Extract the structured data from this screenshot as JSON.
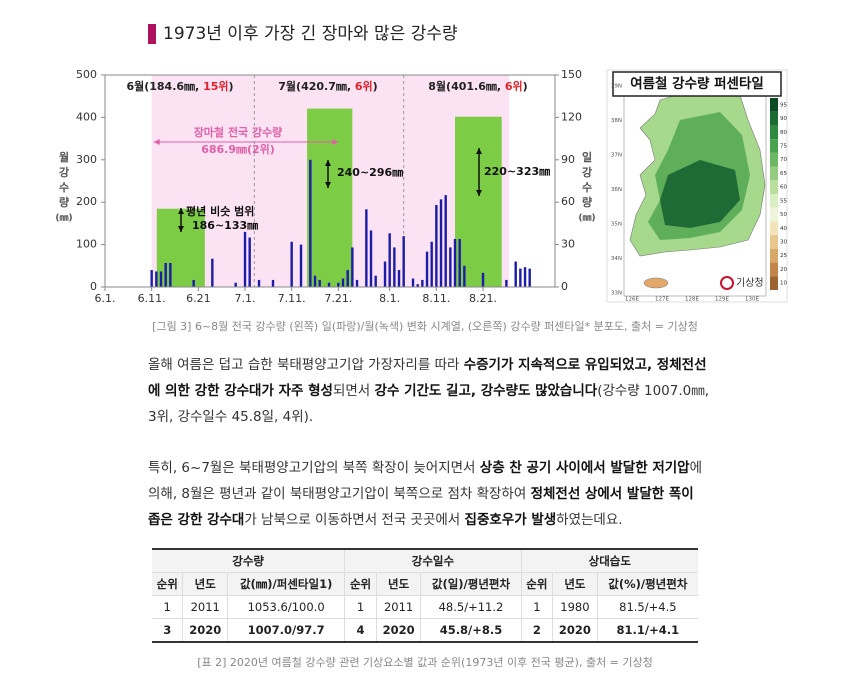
{
  "header": {
    "title": "1973년 이후 가장 긴 장마와 많은 강수량"
  },
  "chart_data": {
    "type": "bar",
    "categories": [
      "6.1.",
      null,
      null,
      null,
      null,
      null,
      null,
      null,
      null,
      null,
      "6.11.",
      null,
      null,
      null,
      null,
      null,
      null,
      null,
      null,
      null,
      "6.21",
      null,
      null,
      null,
      null,
      null,
      null,
      null,
      null,
      null,
      "7.1.",
      null,
      null,
      null,
      null,
      null,
      null,
      null,
      null,
      null,
      "7.11.",
      null,
      null,
      null,
      null,
      null,
      null,
      null,
      null,
      null,
      "7.21.",
      null,
      null,
      null,
      null,
      null,
      null,
      null,
      null,
      null,
      null,
      "8.1.",
      null,
      null,
      null,
      null,
      null,
      null,
      null,
      null,
      null,
      "8.11.",
      null,
      null,
      null,
      null,
      null,
      null,
      null,
      null,
      null,
      "8.21.",
      null,
      null,
      null,
      null,
      null,
      null,
      null,
      null,
      null,
      null
    ],
    "series": [
      {
        "color": "#1c1ca8",
        "axis": "y2",
        "values": [
          0,
          0,
          0,
          0,
          0,
          0,
          0,
          0,
          0,
          0,
          12,
          11,
          11,
          17,
          17,
          0,
          0,
          0,
          0,
          5,
          0,
          0,
          0,
          20,
          0,
          0,
          0,
          0,
          3,
          0,
          39,
          35,
          0,
          5,
          0,
          0,
          5,
          0,
          0,
          0,
          32,
          0,
          30,
          0,
          90,
          8,
          5,
          0,
          3,
          0,
          3,
          6,
          12,
          28,
          5,
          0,
          55,
          40,
          8,
          0,
          18,
          38,
          28,
          12,
          36,
          0,
          6,
          2,
          5,
          25,
          32,
          58,
          62,
          65,
          28,
          34,
          34,
          15,
          0,
          0,
          0,
          10,
          0,
          0,
          0,
          0,
          5,
          0,
          18,
          13,
          14,
          13
        ]
      }
    ],
    "monthly": {
      "color": "#7dcc45",
      "values": [
        184.6,
        420.7,
        401.6
      ]
    },
    "month_labels": [
      [
        "6월(184.6㎜, ",
        "15위",
        ")"
      ],
      [
        "7월(420.7㎜, ",
        "6위",
        ")"
      ],
      [
        "8월(401.6㎜, ",
        "6위",
        ")"
      ]
    ],
    "highlight_color": "#e0202a",
    "annotations": [
      "장마철 전국 강수량",
      "686.9㎜(2위)",
      "평년 비슷 범위",
      "186~133㎜",
      "240~296㎜",
      "220~323㎜"
    ],
    "ylabel": [
      "월",
      "강",
      "수",
      "량",
      "(㎜)"
    ],
    "y2label": [
      "일",
      "강",
      "수",
      "량",
      "(㎜)"
    ],
    "ylim": [
      0,
      500
    ],
    "yticks": [
      0,
      100,
      200,
      300,
      400,
      500
    ],
    "y2lim": [
      0,
      150
    ],
    "y2ticks": [
      0,
      30,
      60,
      90,
      120,
      150
    ]
  },
  "map": {
    "title": "여름철 강수량 퍼센타일",
    "lat_labels": [
      "39N",
      "38N",
      "37N",
      "36N",
      "35N",
      "34N",
      "33N"
    ],
    "lon_labels": [
      "126E",
      "127E",
      "128E",
      "129E",
      "130E"
    ],
    "colorbar_ticks": [
      95,
      90,
      80,
      75,
      70,
      65,
      60,
      55,
      50,
      40,
      30,
      25,
      20,
      10
    ],
    "colorbar_colors": [
      "#0b4a22",
      "#1c6b32",
      "#2f8a3f",
      "#4aa24e",
      "#6db863",
      "#94cc7f",
      "#b9df9f",
      "#d9eec3",
      "#eef4dc",
      "#f3e3b8",
      "#e8c88c",
      "#d8a868",
      "#c08548",
      "#9c6430"
    ],
    "logo": "기상청"
  },
  "caption1": "[그림 3] 6~8월 전국 강수량 (왼쪽) 일(파랑)/월(녹색) 변화 시계열, (오른쪽) 강수량 퍼센타일* 분포도, 출처 = 기상청",
  "paragraphs": [
    {
      "segments": [
        {
          "text": "올해 여름은 덥고 습한 북태평양고기압 가장자리를 따라 ",
          "bold": false
        },
        {
          "text": "수증기가 지속적으로 유입되었고, 정체전선에 의한 강한 강수대가 자주 형성",
          "bold": true
        },
        {
          "text": "되면서 ",
          "bold": false
        },
        {
          "text": "강수 기간도 길고, 강수량도 많았습니다",
          "bold": true
        },
        {
          "text": "(강수량 1007.0㎜, 3위, 강수일수 45.8일, 4위).",
          "bold": false
        }
      ]
    },
    {
      "segments": [
        {
          "text": "특히, 6~7월은 북태평양고기압의 북쪽 확장이 늦어지면서 ",
          "bold": false
        },
        {
          "text": "상층 찬 공기 사이에서 발달한 저기압",
          "bold": true
        },
        {
          "text": "에 의해, 8월은 평년과 같이 북태평양고기압이 북쪽으로 점차 확장하여 ",
          "bold": false
        },
        {
          "text": "정체전선 상에서 발달한 폭이 좁은 강한 강수대",
          "bold": true
        },
        {
          "text": "가 남북으로 이동하면서 전국 곳곳에서 ",
          "bold": false
        },
        {
          "text": "집중호우가 발생",
          "bold": true
        },
        {
          "text": "하였는데요.",
          "bold": false
        }
      ]
    }
  ],
  "table": {
    "groups": [
      "강수량",
      "강수일수",
      "상대습도"
    ],
    "columns": [
      "순위",
      "년도",
      "값(㎜)/퍼센타일1)",
      "순위",
      "년도",
      "값(일)/평년편차",
      "순위",
      "년도",
      "값(%)/평년편차"
    ],
    "rows": [
      [
        "1",
        "2011",
        "1053.6/100.0",
        "1",
        "2011",
        "48.5/+11.2",
        "1",
        "1980",
        "81.5/+4.5"
      ],
      [
        "3",
        "2020",
        "1007.0/97.7",
        "4",
        "2020",
        "45.8/+8.5",
        "2",
        "2020",
        "81.1/+4.1"
      ]
    ],
    "bold_rows": [
      false,
      true
    ]
  },
  "caption2": "[표 2] 2020년 여름철 강수량 관련 기상요소별 값과 순위(1973년 이후 전국 평균), 출처 = 기상청"
}
